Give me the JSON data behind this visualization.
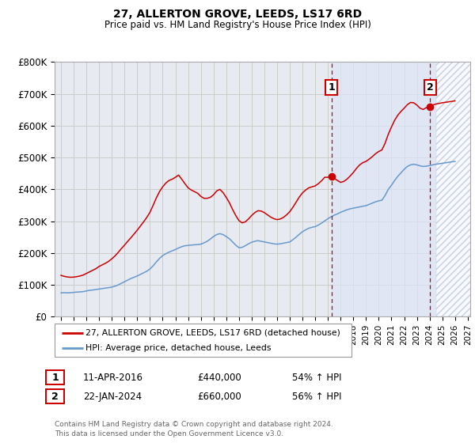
{
  "title": "27, ALLERTON GROVE, LEEDS, LS17 6RD",
  "subtitle": "Price paid vs. HM Land Registry's House Price Index (HPI)",
  "ylabel_ticks": [
    "£0",
    "£100K",
    "£200K",
    "£300K",
    "£400K",
    "£500K",
    "£600K",
    "£700K",
    "£800K"
  ],
  "ylim": [
    0,
    800000
  ],
  "hpi_color": "#6699cc",
  "price_color": "#cc0000",
  "vline_color": "#cc0000",
  "grid_color": "#cccccc",
  "bg_color": "#e8eaf2",
  "shade_color": "#d0d8ee",
  "legend_label_red": "27, ALLERTON GROVE, LEEDS, LS17 6RD (detached house)",
  "legend_label_blue": "HPI: Average price, detached house, Leeds",
  "annotation1_date": "11-APR-2016",
  "annotation1_price": "£440,000",
  "annotation1_hpi": "54% ↑ HPI",
  "annotation2_date": "22-JAN-2024",
  "annotation2_price": "£660,000",
  "annotation2_hpi": "56% ↑ HPI",
  "footer": "Contains HM Land Registry data © Crown copyright and database right 2024.\nThis data is licensed under the Open Government Licence v3.0.",
  "hpi_data": [
    [
      1995.0,
      75000
    ],
    [
      1995.25,
      75500
    ],
    [
      1995.5,
      75000
    ],
    [
      1995.75,
      75500
    ],
    [
      1996.0,
      76500
    ],
    [
      1996.25,
      77500
    ],
    [
      1996.5,
      78000
    ],
    [
      1996.75,
      79000
    ],
    [
      1997.0,
      81000
    ],
    [
      1997.25,
      83000
    ],
    [
      1997.5,
      84000
    ],
    [
      1997.75,
      85500
    ],
    [
      1998.0,
      87000
    ],
    [
      1998.25,
      88500
    ],
    [
      1998.5,
      90000
    ],
    [
      1998.75,
      91500
    ],
    [
      1999.0,
      93000
    ],
    [
      1999.25,
      96000
    ],
    [
      1999.5,
      100000
    ],
    [
      1999.75,
      105000
    ],
    [
      2000.0,
      110000
    ],
    [
      2000.25,
      115000
    ],
    [
      2000.5,
      120000
    ],
    [
      2000.75,
      124000
    ],
    [
      2001.0,
      128000
    ],
    [
      2001.25,
      133000
    ],
    [
      2001.5,
      138000
    ],
    [
      2001.75,
      143000
    ],
    [
      2002.0,
      150000
    ],
    [
      2002.25,
      160000
    ],
    [
      2002.5,
      172000
    ],
    [
      2002.75,
      183000
    ],
    [
      2003.0,
      192000
    ],
    [
      2003.25,
      198000
    ],
    [
      2003.5,
      203000
    ],
    [
      2003.75,
      207000
    ],
    [
      2004.0,
      211000
    ],
    [
      2004.25,
      216000
    ],
    [
      2004.5,
      220000
    ],
    [
      2004.75,
      223000
    ],
    [
      2005.0,
      224000
    ],
    [
      2005.25,
      225000
    ],
    [
      2005.5,
      226000
    ],
    [
      2005.75,
      226500
    ],
    [
      2006.0,
      228000
    ],
    [
      2006.25,
      232000
    ],
    [
      2006.5,
      237000
    ],
    [
      2006.75,
      244000
    ],
    [
      2007.0,
      252000
    ],
    [
      2007.25,
      258000
    ],
    [
      2007.5,
      261000
    ],
    [
      2007.75,
      258000
    ],
    [
      2008.0,
      252000
    ],
    [
      2008.25,
      245000
    ],
    [
      2008.5,
      235000
    ],
    [
      2008.75,
      225000
    ],
    [
      2009.0,
      217000
    ],
    [
      2009.25,
      218000
    ],
    [
      2009.5,
      223000
    ],
    [
      2009.75,
      229000
    ],
    [
      2010.0,
      234000
    ],
    [
      2010.25,
      237000
    ],
    [
      2010.5,
      239000
    ],
    [
      2010.75,
      237000
    ],
    [
      2011.0,
      235000
    ],
    [
      2011.25,
      233000
    ],
    [
      2011.5,
      231000
    ],
    [
      2011.75,
      229000
    ],
    [
      2012.0,
      228000
    ],
    [
      2012.25,
      229000
    ],
    [
      2012.5,
      231000
    ],
    [
      2012.75,
      233000
    ],
    [
      2013.0,
      235000
    ],
    [
      2013.25,
      242000
    ],
    [
      2013.5,
      250000
    ],
    [
      2013.75,
      259000
    ],
    [
      2014.0,
      267000
    ],
    [
      2014.25,
      273000
    ],
    [
      2014.5,
      278000
    ],
    [
      2014.75,
      281000
    ],
    [
      2015.0,
      283000
    ],
    [
      2015.25,
      288000
    ],
    [
      2015.5,
      294000
    ],
    [
      2015.75,
      301000
    ],
    [
      2016.0,
      308000
    ],
    [
      2016.25,
      314000
    ],
    [
      2016.5,
      319000
    ],
    [
      2016.75,
      323000
    ],
    [
      2017.0,
      328000
    ],
    [
      2017.25,
      332000
    ],
    [
      2017.5,
      336000
    ],
    [
      2017.75,
      339000
    ],
    [
      2018.0,
      341000
    ],
    [
      2018.25,
      343000
    ],
    [
      2018.5,
      345000
    ],
    [
      2018.75,
      347000
    ],
    [
      2019.0,
      349000
    ],
    [
      2019.25,
      353000
    ],
    [
      2019.5,
      357000
    ],
    [
      2019.75,
      361000
    ],
    [
      2020.0,
      364000
    ],
    [
      2020.25,
      366000
    ],
    [
      2020.5,
      381000
    ],
    [
      2020.75,
      400000
    ],
    [
      2021.0,
      413000
    ],
    [
      2021.25,
      428000
    ],
    [
      2021.5,
      441000
    ],
    [
      2021.75,
      452000
    ],
    [
      2022.0,
      463000
    ],
    [
      2022.25,
      472000
    ],
    [
      2022.5,
      477000
    ],
    [
      2022.75,
      479000
    ],
    [
      2023.0,
      477000
    ],
    [
      2023.25,
      474000
    ],
    [
      2023.5,
      472000
    ],
    [
      2023.75,
      473000
    ],
    [
      2024.0,
      475000
    ],
    [
      2024.25,
      477000
    ],
    [
      2024.5,
      479000
    ],
    [
      2025.0,
      482000
    ],
    [
      2025.5,
      485000
    ],
    [
      2026.0,
      488000
    ]
  ],
  "price_data": [
    [
      1995.0,
      130000
    ],
    [
      1995.25,
      127000
    ],
    [
      1995.5,
      125000
    ],
    [
      1995.75,
      124000
    ],
    [
      1996.0,
      124500
    ],
    [
      1996.25,
      126000
    ],
    [
      1996.5,
      128000
    ],
    [
      1996.75,
      131000
    ],
    [
      1997.0,
      136000
    ],
    [
      1997.25,
      141000
    ],
    [
      1997.5,
      146000
    ],
    [
      1997.75,
      151000
    ],
    [
      1998.0,
      158000
    ],
    [
      1998.25,
      163000
    ],
    [
      1998.5,
      168000
    ],
    [
      1998.75,
      174000
    ],
    [
      1999.0,
      182000
    ],
    [
      1999.25,
      191000
    ],
    [
      1999.5,
      202000
    ],
    [
      1999.75,
      214000
    ],
    [
      2000.0,
      225000
    ],
    [
      2000.25,
      237000
    ],
    [
      2000.5,
      248000
    ],
    [
      2000.75,
      260000
    ],
    [
      2001.0,
      272000
    ],
    [
      2001.25,
      285000
    ],
    [
      2001.5,
      298000
    ],
    [
      2001.75,
      312000
    ],
    [
      2002.0,
      328000
    ],
    [
      2002.25,
      350000
    ],
    [
      2002.5,
      373000
    ],
    [
      2002.75,
      393000
    ],
    [
      2003.0,
      408000
    ],
    [
      2003.25,
      420000
    ],
    [
      2003.5,
      428000
    ],
    [
      2003.75,
      432000
    ],
    [
      2004.0,
      438000
    ],
    [
      2004.25,
      445000
    ],
    [
      2004.5,
      432000
    ],
    [
      2004.75,
      418000
    ],
    [
      2005.0,
      405000
    ],
    [
      2005.25,
      398000
    ],
    [
      2005.5,
      393000
    ],
    [
      2005.75,
      388000
    ],
    [
      2006.0,
      378000
    ],
    [
      2006.25,
      372000
    ],
    [
      2006.5,
      372000
    ],
    [
      2006.75,
      375000
    ],
    [
      2007.0,
      383000
    ],
    [
      2007.25,
      395000
    ],
    [
      2007.5,
      400000
    ],
    [
      2007.75,
      390000
    ],
    [
      2008.0,
      375000
    ],
    [
      2008.25,
      358000
    ],
    [
      2008.5,
      337000
    ],
    [
      2008.75,
      318000
    ],
    [
      2009.0,
      302000
    ],
    [
      2009.25,
      295000
    ],
    [
      2009.5,
      298000
    ],
    [
      2009.75,
      307000
    ],
    [
      2010.0,
      318000
    ],
    [
      2010.25,
      327000
    ],
    [
      2010.5,
      333000
    ],
    [
      2010.75,
      332000
    ],
    [
      2011.0,
      327000
    ],
    [
      2011.25,
      320000
    ],
    [
      2011.5,
      313000
    ],
    [
      2011.75,
      308000
    ],
    [
      2012.0,
      305000
    ],
    [
      2012.25,
      307000
    ],
    [
      2012.5,
      312000
    ],
    [
      2012.75,
      320000
    ],
    [
      2013.0,
      330000
    ],
    [
      2013.25,
      344000
    ],
    [
      2013.5,
      360000
    ],
    [
      2013.75,
      376000
    ],
    [
      2014.0,
      389000
    ],
    [
      2014.25,
      398000
    ],
    [
      2014.5,
      405000
    ],
    [
      2014.75,
      408000
    ],
    [
      2015.0,
      411000
    ],
    [
      2015.25,
      418000
    ],
    [
      2015.5,
      427000
    ],
    [
      2015.75,
      438000
    ],
    [
      2016.0,
      438000
    ],
    [
      2016.3,
      440000
    ],
    [
      2016.5,
      435000
    ],
    [
      2016.75,
      428000
    ],
    [
      2017.0,
      422000
    ],
    [
      2017.25,
      425000
    ],
    [
      2017.5,
      432000
    ],
    [
      2017.75,
      442000
    ],
    [
      2018.0,
      453000
    ],
    [
      2018.25,
      466000
    ],
    [
      2018.5,
      477000
    ],
    [
      2018.75,
      484000
    ],
    [
      2019.0,
      488000
    ],
    [
      2019.25,
      495000
    ],
    [
      2019.5,
      503000
    ],
    [
      2019.75,
      512000
    ],
    [
      2020.0,
      519000
    ],
    [
      2020.25,
      524000
    ],
    [
      2020.5,
      545000
    ],
    [
      2020.75,
      573000
    ],
    [
      2021.0,
      596000
    ],
    [
      2021.25,
      617000
    ],
    [
      2021.5,
      633000
    ],
    [
      2021.75,
      645000
    ],
    [
      2022.0,
      655000
    ],
    [
      2022.25,
      666000
    ],
    [
      2022.5,
      673000
    ],
    [
      2022.75,
      672000
    ],
    [
      2023.0,
      665000
    ],
    [
      2023.25,
      655000
    ],
    [
      2023.5,
      651000
    ],
    [
      2023.75,
      657000
    ],
    [
      2024.0,
      660000
    ],
    [
      2024.25,
      665000
    ],
    [
      2024.5,
      668000
    ],
    [
      2025.0,
      672000
    ],
    [
      2025.5,
      675000
    ],
    [
      2026.0,
      678000
    ]
  ],
  "vline1_x": 2016.3,
  "vline2_x": 2024.04,
  "marker1_x": 2016.3,
  "marker1_y": 440000,
  "marker2_x": 2024.04,
  "marker2_y": 660000,
  "xmin": 1994.5,
  "xmax": 2027.2,
  "xticks": [
    1995,
    1996,
    1997,
    1998,
    1999,
    2000,
    2001,
    2002,
    2003,
    2004,
    2005,
    2006,
    2007,
    2008,
    2009,
    2010,
    2011,
    2012,
    2013,
    2014,
    2015,
    2016,
    2017,
    2018,
    2019,
    2020,
    2021,
    2022,
    2023,
    2024,
    2025,
    2026,
    2027
  ],
  "hatch_region_start": 2024.5,
  "hatch_region_end": 2027.5,
  "hatch_color": "#b8c4dc",
  "shade_region_start": 2016.3,
  "shade_region_end": 2027.5
}
